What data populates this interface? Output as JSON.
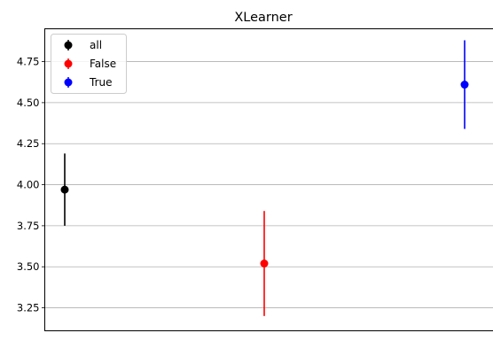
{
  "chart_data": {
    "type": "scatter",
    "title": "XLearner",
    "xlabel": "",
    "ylabel": "",
    "ylim": [
      3.11,
      4.95
    ],
    "yticks": [
      "3.25",
      "3.50",
      "3.75",
      "4.00",
      "4.25",
      "4.50",
      "4.75"
    ],
    "grid": "horizontal",
    "legend_position": "top-left",
    "series": [
      {
        "name": "all",
        "color": "#000000",
        "x": 0,
        "y": 3.97,
        "lower": 3.75,
        "upper": 4.19
      },
      {
        "name": "False",
        "color": "#ff0000",
        "x": 1,
        "y": 3.52,
        "lower": 3.2,
        "upper": 3.84
      },
      {
        "name": "True",
        "color": "#0000ff",
        "x": 2,
        "y": 4.61,
        "lower": 4.34,
        "upper": 4.88
      }
    ]
  }
}
